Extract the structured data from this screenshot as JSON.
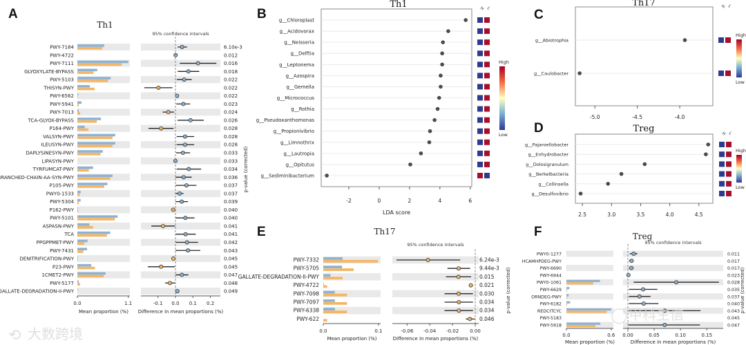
{
  "colors": {
    "group_h": "#8db3d3",
    "group_l": "#f4b565",
    "band": "#e9e9e9",
    "heat_high": "#a50f2a",
    "heat_low": "#2d3b8e",
    "dot": "#4a4a4a"
  },
  "panel_labels": {
    "a": "A",
    "b": "B",
    "c": "C",
    "d": "D",
    "e": "E",
    "f": "F"
  },
  "watermarks": [
    "大数跨境",
    "甲科生信"
  ],
  "chart_data": [
    {
      "id": "A",
      "type": "bar+errorbar",
      "title": "Th1",
      "ci_title": "95% confidence intervals",
      "xlabel_bar": "Mean proportion (%)",
      "xlabel_diff": "Difference in mean proportions (%)",
      "ylabel_right": "p-value (corrected)",
      "bar_ticks": [
        "0.0",
        "1.1"
      ],
      "bar_tick_values": [
        0,
        1.1
      ],
      "diff_ticks": [
        "-0.1",
        "0.0",
        "0.1",
        "0.2"
      ],
      "diff_tick_values": [
        -0.1,
        0,
        0.1,
        0.2
      ],
      "rows": [
        {
          "label": "PWY-7184",
          "h": 0.58,
          "l": 0.54,
          "diff": 0.038,
          "ci": [
            0.013,
            0.066
          ],
          "p": "6.10e-3"
        },
        {
          "label": "PWY-4722",
          "h": 0.0,
          "l": 0.0,
          "diff": 0.001,
          "ci": [
            0.0,
            0.003
          ],
          "p": "0.012"
        },
        {
          "label": "PWY-7111",
          "h": 1.1,
          "l": 0.96,
          "diff": 0.129,
          "ci": [
            0.025,
            0.234
          ],
          "p": "0.016"
        },
        {
          "label": "GLYOXYLATE-BYPASS",
          "h": 0.43,
          "l": 0.35,
          "diff": 0.074,
          "ci": [
            0.013,
            0.136
          ],
          "p": "0.018"
        },
        {
          "label": "PWY-5103",
          "h": 0.72,
          "l": 0.66,
          "diff": 0.05,
          "ci": [
            0.008,
            0.093
          ],
          "p": "0.022"
        },
        {
          "label": "THISYN-PWY",
          "h": 0.27,
          "l": 0.37,
          "diff": -0.097,
          "ci": [
            -0.178,
            -0.017
          ],
          "p": "0.022"
        },
        {
          "label": "PWY-6562",
          "h": 0.02,
          "l": 0.01,
          "diff": 0.009,
          "ci": [
            0.003,
            0.015
          ],
          "p": "0.022"
        },
        {
          "label": "PWY-5941",
          "h": 0.09,
          "l": 0.03,
          "diff": 0.045,
          "ci": [
            0.005,
            0.084
          ],
          "p": "0.023"
        },
        {
          "label": "PWY-7013",
          "h": 0.03,
          "l": 0.06,
          "diff": -0.041,
          "ci": [
            -0.074,
            -0.008
          ],
          "p": "0.024"
        },
        {
          "label": "TCA-GLYOX-BYPASS",
          "h": 0.51,
          "l": 0.42,
          "diff": 0.086,
          "ci": [
            0.012,
            0.162
          ],
          "p": "0.026"
        },
        {
          "label": "P164-PWY",
          "h": 0.16,
          "l": 0.24,
          "diff": -0.082,
          "ci": [
            -0.154,
            -0.011
          ],
          "p": "0.028"
        },
        {
          "label": "VALSYN-PWY",
          "h": 0.82,
          "l": 0.76,
          "diff": 0.055,
          "ci": [
            0.007,
            0.107
          ],
          "p": "0.028"
        },
        {
          "label": "ILEUSYN-PWY",
          "h": 0.82,
          "l": 0.76,
          "diff": 0.055,
          "ci": [
            0.007,
            0.107
          ],
          "p": "0.028"
        },
        {
          "label": "DAPLYSINESYN-PWY",
          "h": 0.55,
          "l": 0.5,
          "diff": 0.043,
          "ci": [
            0.003,
            0.084
          ],
          "p": "0.033"
        },
        {
          "label": "LIPASYN-PWY",
          "h": 0.0,
          "l": 0.0,
          "diff": 0.0,
          "ci": [
            0.0,
            0.002
          ],
          "p": "0.033"
        },
        {
          "label": "TYRFUMCAT-PWY",
          "h": 0.34,
          "l": 0.25,
          "diff": 0.076,
          "ci": [
            0.007,
            0.147
          ],
          "p": "0.034"
        },
        {
          "label": "BRANCHED-CHAIN-AA-SYN-PWY",
          "h": 0.76,
          "l": 0.71,
          "diff": 0.047,
          "ci": [
            0.001,
            0.093
          ],
          "p": "0.036"
        },
        {
          "label": "P105-PWY",
          "h": 0.65,
          "l": 0.58,
          "diff": 0.063,
          "ci": [
            0.001,
            0.12
          ],
          "p": "0.037"
        },
        {
          "label": "PWY0-1533",
          "h": 0.07,
          "l": 0.05,
          "diff": 0.024,
          "ci": [
            0.001,
            0.046
          ],
          "p": "0.037"
        },
        {
          "label": "PWY-5304",
          "h": 0.07,
          "l": 0.03,
          "diff": 0.036,
          "ci": [
            0.001,
            0.071
          ],
          "p": "0.039"
        },
        {
          "label": "P162-PWY",
          "h": 0.01,
          "l": 0.02,
          "diff": -0.013,
          "ci": [
            -0.02,
            -0.006
          ],
          "p": "0.040"
        },
        {
          "label": "PWY-5101",
          "h": 0.87,
          "l": 0.81,
          "diff": 0.057,
          "ci": [
            0.001,
            0.109
          ],
          "p": "0.040"
        },
        {
          "label": "ASPASN-PWY",
          "h": 0.26,
          "l": 0.34,
          "diff": -0.071,
          "ci": [
            -0.138,
            -0.003
          ],
          "p": "0.041"
        },
        {
          "label": "TCA",
          "h": 0.71,
          "l": 0.64,
          "diff": 0.058,
          "ci": [
            0.001,
            0.116
          ],
          "p": "0.041"
        },
        {
          "label": "PPGPPMET-PWY",
          "h": 0.22,
          "l": 0.15,
          "diff": 0.066,
          "ci": [
            0.001,
            0.129
          ],
          "p": "0.042"
        },
        {
          "label": "PWY-7431",
          "h": 0.21,
          "l": 0.13,
          "diff": 0.072,
          "ci": [
            0.001,
            0.142
          ],
          "p": "0.043"
        },
        {
          "label": "DENITRIFICATION-PWY",
          "h": 0.01,
          "l": 0.01,
          "diff": -0.012,
          "ci": [
            -0.018,
            -0.006
          ],
          "p": "0.045"
        },
        {
          "label": "P23-PWY",
          "h": 0.3,
          "l": 0.38,
          "diff": -0.082,
          "ci": [
            -0.158,
            -0.003
          ],
          "p": "0.045"
        },
        {
          "label": "1CMET2-PWY",
          "h": 0.61,
          "l": 0.57,
          "diff": 0.037,
          "ci": [
            0.001,
            0.074
          ],
          "p": "0.047"
        },
        {
          "label": "PWY-5177",
          "h": 0.03,
          "l": 0.06,
          "diff": -0.032,
          "ci": [
            -0.059,
            -0.003
          ],
          "p": "0.048"
        },
        {
          "label": "GALLATE-DEGRADATION-II-PWY",
          "h": 0.01,
          "l": 0.0,
          "diff": 0.011,
          "ci": [
            0.006,
            0.016
          ],
          "p": "0.049"
        }
      ]
    },
    {
      "id": "B",
      "type": "scatter",
      "title": "Th1",
      "xlabel": "LDA score",
      "xlim": [
        -3.82,
        6.1
      ],
      "ticks": [
        "-2",
        "0",
        "2",
        "4",
        "6"
      ],
      "tick_values": [
        -2,
        0,
        2,
        4,
        6
      ],
      "heat_headers": [
        "H",
        "L"
      ],
      "colorbar": {
        "high": "High",
        "low": "Low"
      },
      "rows": [
        {
          "label": "g__Chloroplast",
          "value": 5.7,
          "heat": [
            "low",
            "high"
          ]
        },
        {
          "label": "g__Acidovorax",
          "value": 4.55,
          "heat": [
            "low",
            "high"
          ]
        },
        {
          "label": "g__Neisseria",
          "value": 4.2,
          "heat": [
            "low",
            "high"
          ]
        },
        {
          "label": "g__Delftia",
          "value": 4.15,
          "heat": [
            "low",
            "high"
          ]
        },
        {
          "label": "g__Leptonema",
          "value": 4.15,
          "heat": [
            "low",
            "high"
          ]
        },
        {
          "label": "g__Azospira",
          "value": 4.05,
          "heat": [
            "low",
            "high"
          ]
        },
        {
          "label": "g__Gemella",
          "value": 4.05,
          "heat": [
            "low",
            "high"
          ]
        },
        {
          "label": "g__Micrococcus",
          "value": 3.95,
          "heat": [
            "low",
            "high"
          ]
        },
        {
          "label": "g__Rothia",
          "value": 3.85,
          "heat": [
            "low",
            "high"
          ]
        },
        {
          "label": "g__Pseudoxanthomonas",
          "value": 3.65,
          "heat": [
            "low",
            "high"
          ]
        },
        {
          "label": "g__Propionivibrio",
          "value": 3.35,
          "heat": [
            "low",
            "high"
          ]
        },
        {
          "label": "g__Limnothrix",
          "value": 3.3,
          "heat": [
            "low",
            "high"
          ]
        },
        {
          "label": "g__Lautropia",
          "value": 2.75,
          "heat": [
            "low",
            "high"
          ]
        },
        {
          "label": "g__Opitutus",
          "value": 2.05,
          "heat": [
            "low",
            "high"
          ]
        },
        {
          "label": "g__Sediminibacterium",
          "value": -3.45,
          "heat": [
            "high",
            "low"
          ]
        }
      ]
    },
    {
      "id": "C",
      "type": "scatter",
      "title": "Th17",
      "xlabel": "",
      "xlim": [
        -5.23,
        -3.61
      ],
      "ticks": [
        "-5.0",
        "-4.5",
        "-4.0"
      ],
      "tick_values": [
        -5.0,
        -4.5,
        -4.0
      ],
      "heat_headers": [
        "H",
        "L"
      ],
      "colorbar": {
        "high": "High",
        "low": "Low"
      },
      "rows": [
        {
          "label": "g__Abiotrophia",
          "value": -3.94,
          "heat": [
            "low",
            "high"
          ]
        },
        {
          "label": "g__Caulobacter",
          "value": -5.18,
          "heat": [
            "low",
            "high"
          ]
        }
      ]
    },
    {
      "id": "D",
      "type": "scatter",
      "title": "Treg",
      "xlabel": "",
      "xlim": [
        2.38,
        4.74
      ],
      "ticks": [
        "2.5",
        "3.0",
        "3.5",
        "4.0",
        "4.5"
      ],
      "tick_values": [
        2.5,
        3.0,
        3.5,
        4.0,
        4.5
      ],
      "heat_headers": [
        "H",
        "L"
      ],
      "colorbar": {
        "high": "High",
        "low": "Low"
      },
      "rows": [
        {
          "label": "g__Pajaroellobacter",
          "value": 4.66,
          "heat": [
            "low",
            "high"
          ]
        },
        {
          "label": "g__Enhydrobacter",
          "value": 4.62,
          "heat": [
            "low",
            "high"
          ]
        },
        {
          "label": "g__Dolosigranulum",
          "value": 3.57,
          "heat": [
            "low",
            "high"
          ]
        },
        {
          "label": "g__Berkelbacteria",
          "value": 3.17,
          "heat": [
            "low",
            "high"
          ]
        },
        {
          "label": "g__Collinsella",
          "value": 2.94,
          "heat": [
            "low",
            "high"
          ]
        },
        {
          "label": "g__Desulfovibrio",
          "value": 2.47,
          "heat": [
            "low",
            "high"
          ]
        }
      ]
    },
    {
      "id": "E",
      "type": "bar+errorbar",
      "title": "Th17",
      "ci_title": "95% confidence intervals",
      "xlabel_bar": "Mean proportion (%)",
      "xlabel_diff": "Difference in mean proportions (%)",
      "ylabel_right": "p-value (corrected)",
      "bar_ticks": [
        "0.0",
        "0.1"
      ],
      "bar_tick_values": [
        0,
        0.1
      ],
      "diff_ticks": [
        "-0.06",
        "-0.04",
        "-0.02",
        "0.00"
      ],
      "diff_tick_values": [
        -0.06,
        -0.04,
        -0.02,
        0
      ],
      "rows": [
        {
          "label": "PWY-7332",
          "h": 0.035,
          "l": 0.099,
          "diff": -0.0416,
          "ci": [
            -0.0694,
            -0.0132
          ],
          "p": "6.24e-3"
        },
        {
          "label": "PWY-5705",
          "h": 0.034,
          "l": 0.055,
          "diff": -0.0146,
          "ci": [
            -0.0245,
            -0.0045
          ],
          "p": "9.44e-3"
        },
        {
          "label": "GALLATE-DEGRADATION-II-PWY",
          "h": 0.013,
          "l": 0.035,
          "diff": -0.0148,
          "ci": [
            -0.0258,
            -0.0036
          ],
          "p": "0.015"
        },
        {
          "label": "PWY-4722",
          "h": 0.001,
          "l": 0.007,
          "diff": -0.0039,
          "ci": [
            -0.0055,
            -0.002
          ],
          "p": "0.021"
        },
        {
          "label": "PWY-7098",
          "h": 0.021,
          "l": 0.043,
          "diff": -0.0146,
          "ci": [
            -0.027,
            -0.002
          ],
          "p": "0.030"
        },
        {
          "label": "PWY-7097",
          "h": 0.021,
          "l": 0.043,
          "diff": -0.0144,
          "ci": [
            -0.027,
            -0.002
          ],
          "p": "0.034"
        },
        {
          "label": "PWY-6338",
          "h": 0.021,
          "l": 0.043,
          "diff": -0.0144,
          "ci": [
            -0.027,
            -0.002
          ],
          "p": "0.034"
        },
        {
          "label": "PWY-622",
          "h": 0.0,
          "l": 0.007,
          "diff": -0.0047,
          "ci": [
            -0.0083,
            -0.0004
          ],
          "p": "0.046"
        }
      ]
    },
    {
      "id": "F",
      "type": "bar+errorbar",
      "title": "Treg",
      "ci_title": "95% confidence intervals",
      "xlabel_bar": "Mean proportion (%)",
      "xlabel_diff": "Difference in mean proportions (%)",
      "ylabel_right": "p-value (corrected)",
      "bar_ticks": [
        "0.0",
        "0.6"
      ],
      "bar_tick_values": [
        0,
        0.6
      ],
      "diff_ticks": [
        "0.00",
        "0.05",
        "0.10",
        "0.15"
      ],
      "diff_tick_values": [
        0,
        0.05,
        0.1,
        0.15
      ],
      "rows": [
        {
          "label": "PWY0-1277",
          "h": 0.003,
          "l": 0.0,
          "diff": 0.011,
          "ci": [
            0.0035,
            0.018
          ],
          "p": "0.011"
        },
        {
          "label": "HCAMHPDEG-PWY",
          "h": 0.001,
          "l": 0.0,
          "diff": 0.007,
          "ci": [
            0.002,
            0.011
          ],
          "p": "0.017"
        },
        {
          "label": "PWY-6690",
          "h": 0.002,
          "l": 0.0,
          "diff": 0.0066,
          "ci": [
            0.002,
            0.011
          ],
          "p": "0.017"
        },
        {
          "label": "PWY-6944",
          "h": 0.0,
          "l": 0.0,
          "diff": 0.001,
          "ci": [
            0.0,
            0.002
          ],
          "p": "0.023"
        },
        {
          "label": "PWY0-1061",
          "h": 0.45,
          "l": 0.36,
          "diff": 0.092,
          "ci": [
            0.011,
            0.173
          ],
          "p": "0.028"
        },
        {
          "label": "PWY-6629",
          "h": 0.04,
          "l": 0.01,
          "diff": 0.029,
          "ci": [
            0.002,
            0.056
          ],
          "p": "0.035"
        },
        {
          "label": "ORNDEG-PWY",
          "h": 0.03,
          "l": 0.01,
          "diff": 0.022,
          "ci": [
            0.002,
            0.043
          ],
          "p": "0.037"
        },
        {
          "label": "PWY-6182",
          "h": 0.05,
          "l": 0.01,
          "diff": 0.03,
          "ci": [
            0.002,
            0.058
          ],
          "p": "0.040"
        },
        {
          "label": "REDCITCYC",
          "h": 0.6,
          "l": 0.54,
          "diff": 0.07,
          "ci": [
            0.002,
            0.138
          ],
          "p": "0.043"
        },
        {
          "label": "PWY-5183",
          "h": 0.0,
          "l": 0.0,
          "diff": null,
          "ci": null,
          "p": "0.045"
        },
        {
          "label": "PWY-5918",
          "h": 0.455,
          "l": 0.39,
          "diff": 0.07,
          "ci": [
            0.001,
            0.137
          ],
          "p": "0.047"
        }
      ]
    }
  ]
}
